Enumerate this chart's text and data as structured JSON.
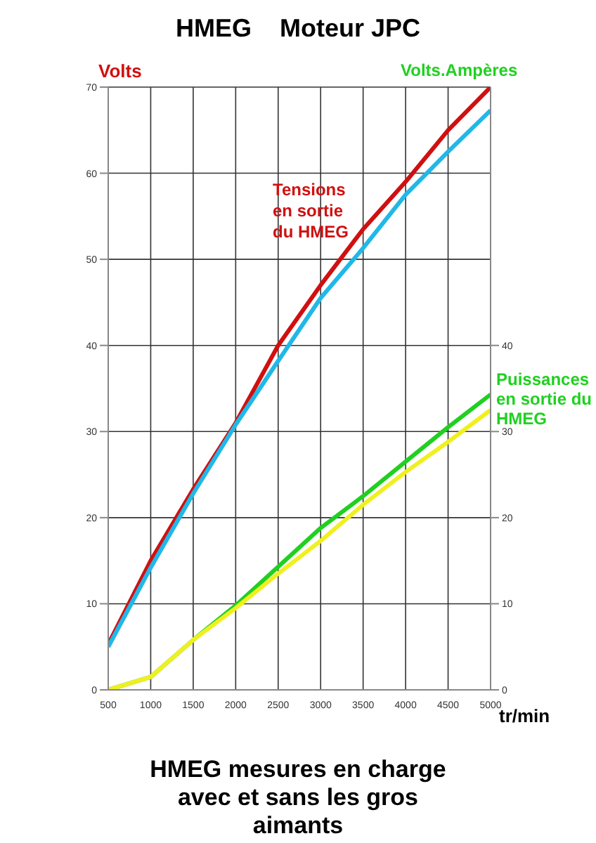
{
  "chart_data": {
    "type": "line",
    "title": "HMEG    Moteur JPC",
    "xlabel": "tr/min",
    "ylabel": "Volts",
    "y2label": "Volts.Ampères",
    "x": [
      500,
      1000,
      1500,
      2000,
      2500,
      3000,
      3500,
      4000,
      4500,
      5000
    ],
    "series": [
      {
        "color": "#d01010",
        "values": [
          5.3,
          15,
          23.3,
          31,
          40,
          47,
          53.5,
          59,
          65,
          70
        ]
      },
      {
        "color": "#20b8e8",
        "values": [
          5,
          14.2,
          22.8,
          30.8,
          38.2,
          45.5,
          51.3,
          57.5,
          62.5,
          67.3
        ]
      },
      {
        "color": "#20d020",
        "values": [
          0,
          1.5,
          5.8,
          9.8,
          14.3,
          18.8,
          22.5,
          26.5,
          30.5,
          34.3
        ]
      },
      {
        "color": "#f0f020",
        "values": [
          0,
          1.5,
          5.8,
          9.5,
          13.5,
          17.3,
          21.5,
          25.3,
          28.8,
          32.5
        ]
      }
    ],
    "xlim": [
      500,
      5000
    ],
    "xticks": [
      500,
      1000,
      1500,
      2000,
      2500,
      3000,
      3500,
      4000,
      4500,
      5000
    ],
    "ylim": [
      0,
      70
    ],
    "yticks": [
      0,
      10,
      20,
      30,
      40,
      50,
      60,
      70
    ],
    "y2lim": [
      0,
      70
    ],
    "y2ticks": [
      0,
      10,
      20,
      30,
      40
    ],
    "grid": true,
    "line_style": "solid",
    "annotations": [
      "Tensions en sortie du HMEG",
      "Puissances en sortie du HMEG",
      "HMEG mesures en charge avec et sans les gros aimants"
    ]
  }
}
